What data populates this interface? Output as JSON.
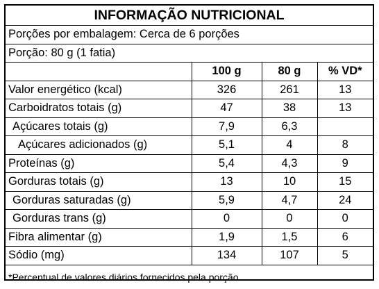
{
  "title": "INFORMAÇÃO NUTRICIONAL",
  "servings_per_package": "Porções por embalagem: Cerca de 6 porções",
  "serving_size": "Porção: 80 g (1 fatia)",
  "columns": [
    "100 g",
    "80 g",
    "% VD*"
  ],
  "rows": [
    {
      "name": "Valor energético (kcal)",
      "indent": 0,
      "v100": "326",
      "v80": "261",
      "vd": "13"
    },
    {
      "name": "Carboidratos totais (g)",
      "indent": 0,
      "v100": "47",
      "v80": "38",
      "vd": "13"
    },
    {
      "name": "Açúcares totais (g)",
      "indent": 1,
      "v100": "7,9",
      "v80": "6,3",
      "vd": ""
    },
    {
      "name": "Açúcares adicionados (g)",
      "indent": 2,
      "v100": "5,1",
      "v80": "4",
      "vd": "8"
    },
    {
      "name": "Proteínas (g)",
      "indent": 0,
      "v100": "5,4",
      "v80": "4,3",
      "vd": "9"
    },
    {
      "name": "Gorduras totais (g)",
      "indent": 0,
      "v100": "13",
      "v80": "10",
      "vd": "15"
    },
    {
      "name": "Gorduras saturadas (g)",
      "indent": 1,
      "v100": "5,9",
      "v80": "4,7",
      "vd": "24"
    },
    {
      "name": "Gorduras trans (g)",
      "indent": 1,
      "v100": "0",
      "v80": "0",
      "vd": "0"
    },
    {
      "name": "Fibra alimentar (g)",
      "indent": 0,
      "v100": "1,9",
      "v80": "1,5",
      "vd": "6"
    },
    {
      "name": "Sódio (mg)",
      "indent": 0,
      "v100": "134",
      "v80": "107",
      "vd": "5"
    }
  ],
  "footnote": "*Percentual de valores diários fornecidos pela porção"
}
